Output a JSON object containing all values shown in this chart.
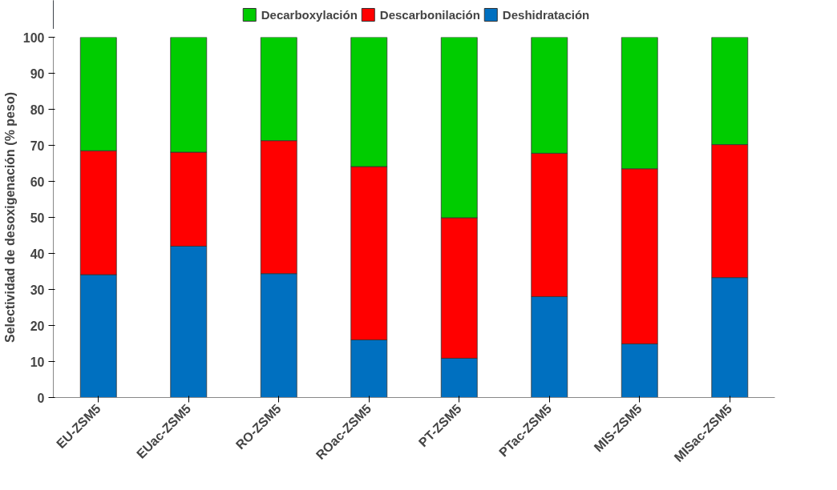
{
  "chart_data": {
    "type": "bar",
    "stacked": true,
    "ylabel": "Selectividad de desoxigenación (% peso)",
    "categories": [
      "EU-ZSM5",
      "EUac-ZSM5",
      "RO-ZSM5",
      "ROac-ZSM5",
      "PT-ZSM5",
      "PTac-ZSM5",
      "MIS-ZSM5",
      "MISac-ZSM5"
    ],
    "series": [
      {
        "name": "Deshidratación",
        "color": "#0070c0",
        "values": [
          34.1,
          42.0,
          34.4,
          16.0,
          10.9,
          28.0,
          14.9,
          33.3
        ]
      },
      {
        "name": "Descarbonilación",
        "color": "#ff0000",
        "values": [
          34.4,
          26.1,
          36.9,
          48.1,
          39.0,
          39.8,
          48.6,
          36.9
        ]
      },
      {
        "name": "Decarboxylación",
        "color": "#00cc00",
        "values": [
          31.5,
          31.9,
          28.7,
          35.9,
          50.1,
          32.2,
          36.5,
          29.8
        ]
      }
    ],
    "ylim": [
      0,
      100
    ],
    "yticks": [
      0,
      10,
      20,
      30,
      40,
      50,
      60,
      70,
      80,
      90,
      100
    ],
    "grid": false,
    "legend": "top"
  }
}
